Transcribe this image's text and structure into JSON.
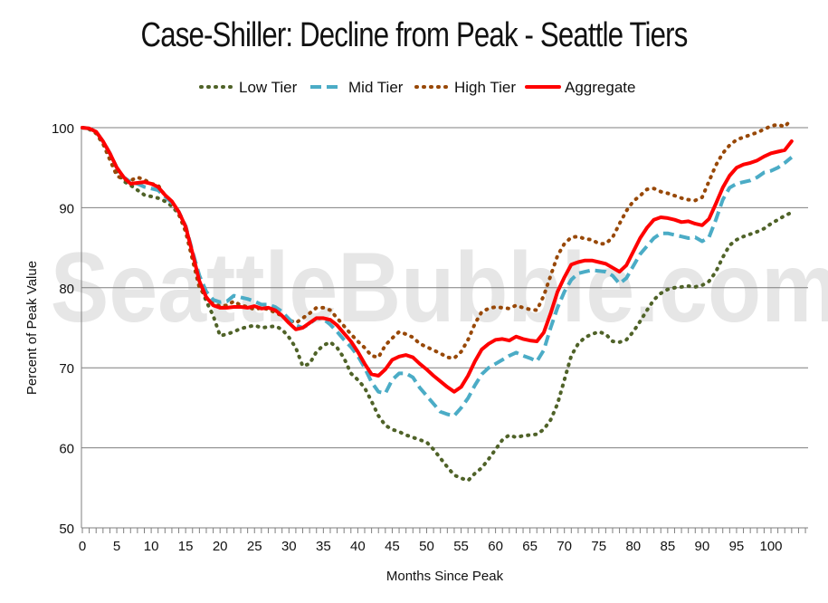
{
  "chart_data": {
    "type": "line",
    "title": "Case-Shiller: Decline from Peak - Seattle Tiers",
    "xlabel": "Months Since Peak",
    "ylabel": "Percent of Peak Value",
    "watermark": "SeattleBubble.com",
    "xlim": [
      0,
      105
    ],
    "ylim": [
      50,
      100
    ],
    "xticks": [
      0,
      5,
      10,
      15,
      20,
      25,
      30,
      35,
      40,
      45,
      50,
      55,
      60,
      65,
      70,
      75,
      80,
      85,
      90,
      95,
      100
    ],
    "yticks": [
      50,
      60,
      70,
      80,
      90,
      100
    ],
    "grid": "horizontal",
    "legend": "top-center",
    "x_start": 0,
    "series": [
      {
        "name": "Low Tier",
        "color": "#4f6228",
        "style": "dotted",
        "values": [
          100,
          99.8,
          99.3,
          98,
          96.5,
          94.5,
          93.3,
          92.8,
          92.2,
          91.6,
          91.4,
          91.2,
          90.8,
          90.2,
          89.2,
          87.3,
          84,
          80.5,
          78.3,
          76.5,
          74,
          74.2,
          74.5,
          74.9,
          75.1,
          75.3,
          75,
          75.1,
          75.2,
          74.8,
          73.8,
          72.5,
          70.2,
          70.5,
          72,
          72.8,
          73.2,
          72.5,
          71.2,
          69.3,
          68.5,
          67.5,
          65.8,
          64,
          62.8,
          62.3,
          62,
          61.6,
          61.3,
          61,
          60.7,
          59.8,
          58.7,
          57.6,
          56.6,
          56.2,
          55.9,
          56.8,
          57.5,
          58.6,
          59.8,
          61,
          61.6,
          61.3,
          61.5,
          61.6,
          61.7,
          62.3,
          63.5,
          65.5,
          68.5,
          71.5,
          73,
          73.8,
          74.2,
          74.5,
          74.2,
          73.3,
          73.2,
          73.5,
          74.5,
          75.8,
          77.2,
          78.5,
          79.3,
          79.8,
          80,
          80.1,
          80.2,
          80.1,
          80.3,
          80.8,
          82,
          83.8,
          85.3,
          86,
          86.4,
          86.7,
          87,
          87.4,
          88,
          88.5,
          89,
          89.4
        ]
      },
      {
        "name": "Mid Tier",
        "color": "#4bacc6",
        "style": "dashed",
        "values": [
          100,
          99.9,
          99.5,
          98.3,
          96.8,
          95,
          93.8,
          93.2,
          93,
          92.6,
          92.4,
          92.2,
          91.4,
          90.6,
          89.5,
          87.7,
          84.5,
          81.5,
          79.5,
          78.5,
          78.2,
          78.3,
          79,
          78.8,
          78.6,
          78.3,
          77.9,
          77.9,
          77.6,
          77,
          76.1,
          75.3,
          75,
          75.5,
          76.2,
          76.1,
          75.4,
          74.5,
          73.5,
          72.6,
          71.5,
          70,
          68.2,
          67,
          66.8,
          68.5,
          69.3,
          69.3,
          68.8,
          67.5,
          66.5,
          65.5,
          64.5,
          64.2,
          64,
          65,
          66.2,
          67.8,
          69.2,
          70,
          70.5,
          71,
          71.5,
          71.9,
          71.5,
          71.2,
          70.8,
          72.2,
          75,
          77.5,
          79.5,
          81,
          81.8,
          82,
          82.2,
          82.1,
          82,
          81.5,
          80.5,
          81.2,
          82.7,
          84.2,
          85.2,
          86.2,
          86.8,
          86.8,
          86.6,
          86.4,
          86.2,
          86.3,
          85.8,
          86.3,
          88.5,
          91,
          92.5,
          93,
          93.2,
          93.4,
          93.8,
          94.4,
          94.6,
          95,
          95.6,
          96.3
        ]
      },
      {
        "name": "High Tier",
        "color": "#984807",
        "style": "dotted",
        "values": [
          100,
          99.9,
          99.3,
          98,
          96,
          94,
          93.5,
          93.4,
          93.8,
          93.5,
          93,
          92.8,
          91.5,
          90.8,
          89.2,
          87,
          83.5,
          80,
          78.8,
          78,
          77.7,
          77.8,
          78.3,
          77.8,
          77.6,
          77.3,
          77.5,
          77.3,
          76.9,
          76.5,
          76,
          75.6,
          76.2,
          76.8,
          77.5,
          77.5,
          77.2,
          76.2,
          75.2,
          74.2,
          73.3,
          72.5,
          71.5,
          71.3,
          72.8,
          73.7,
          74.5,
          74.2,
          73.8,
          73,
          72.6,
          72.2,
          71.8,
          71.3,
          71.2,
          72,
          73.5,
          75.5,
          77,
          77.4,
          77.6,
          77.5,
          77.4,
          77.8,
          77.5,
          77.3,
          77.2,
          79,
          81.5,
          84,
          85.5,
          86.3,
          86.4,
          86.1,
          86,
          85.5,
          85.5,
          86.3,
          88,
          89.6,
          90.8,
          91.5,
          92.3,
          92.4,
          92,
          91.8,
          91.5,
          91.2,
          91,
          90.9,
          91.3,
          93.3,
          95.3,
          96.8,
          97.8,
          98.5,
          98.8,
          99.1,
          99.4,
          99.8,
          100.2,
          100.4,
          100.1,
          101.1
        ]
      },
      {
        "name": "Aggregate",
        "color": "#ff0000",
        "style": "solid",
        "values": [
          100,
          99.9,
          99.5,
          98.3,
          96.8,
          95,
          93.8,
          93,
          93.1,
          93.2,
          93,
          92.6,
          91.6,
          90.8,
          89.5,
          87.6,
          84.3,
          80.8,
          78.8,
          77.8,
          77.5,
          77.5,
          77.6,
          77.6,
          77.5,
          77.7,
          77.4,
          77.5,
          77.2,
          76.5,
          75.6,
          74.8,
          75,
          75.6,
          76.2,
          76.2,
          76,
          75.3,
          74.3,
          73.3,
          72,
          70.5,
          69.2,
          69,
          69.8,
          71,
          71.4,
          71.6,
          71.3,
          70.5,
          69.8,
          69,
          68.3,
          67.6,
          67,
          67.6,
          69,
          70.8,
          72.3,
          73,
          73.5,
          73.6,
          73.4,
          73.9,
          73.6,
          73.4,
          73.3,
          74.4,
          76.8,
          79.5,
          81.3,
          82.9,
          83.2,
          83.4,
          83.4,
          83.2,
          83,
          82.5,
          82,
          82.8,
          84.5,
          86.2,
          87.5,
          88.5,
          88.8,
          88.7,
          88.5,
          88.2,
          88.3,
          88,
          87.8,
          88.6,
          90.5,
          92.5,
          94,
          95,
          95.4,
          95.6,
          95.9,
          96.4,
          96.8,
          97,
          97.2,
          98.3
        ]
      }
    ]
  }
}
